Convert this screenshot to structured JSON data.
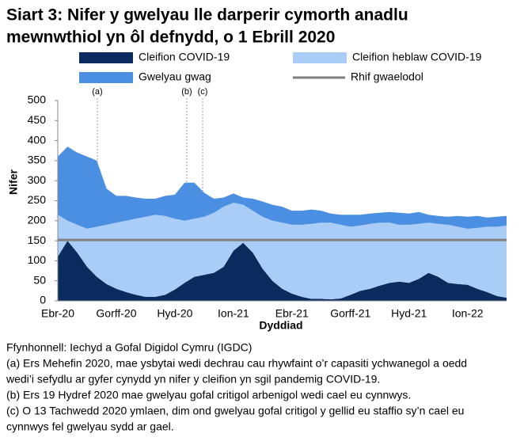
{
  "chart_data": {
    "type": "stacked-area",
    "title": [
      "Siart 3: Nifer y gwelyau lle darperir cymorth anadlu",
      "mewnwthiol yn ôl defnydd, o 1 Ebrill 2020"
    ],
    "x_label": "Dyddiad",
    "y_label": "Nifer",
    "categories": [
      "Ebr-20",
      null,
      null,
      null,
      null,
      null,
      "Gorff-20",
      null,
      null,
      null,
      null,
      null,
      "Hyd-20",
      null,
      null,
      null,
      null,
      null,
      "Ion-21",
      null,
      null,
      null,
      null,
      null,
      "Ebr-21",
      null,
      null,
      null,
      null,
      null,
      "Gorff-21",
      null,
      null,
      null,
      null,
      null,
      "Hyd-21",
      null,
      null,
      null,
      null,
      null,
      "Ion-22",
      null,
      null,
      null,
      null
    ],
    "series": [
      {
        "name": "Cleifion COVID-19",
        "color": "#0b2a5e",
        "values": [
          110,
          150,
          120,
          85,
          60,
          42,
          30,
          22,
          15,
          10,
          10,
          15,
          28,
          45,
          60,
          65,
          70,
          85,
          125,
          145,
          120,
          80,
          50,
          30,
          18,
          10,
          5,
          5,
          4,
          6,
          15,
          25,
          30,
          38,
          45,
          48,
          45,
          55,
          70,
          60,
          45,
          42,
          40,
          30,
          22,
          12,
          8
        ]
      },
      {
        "name": "Cleifion heblaw COVID-19",
        "color": "#a9cdf6",
        "values": [
          105,
          50,
          70,
          95,
          125,
          148,
          165,
          178,
          190,
          200,
          205,
          197,
          177,
          155,
          145,
          145,
          150,
          150,
          120,
          95,
          105,
          130,
          150,
          165,
          172,
          180,
          187,
          190,
          191,
          184,
          170,
          163,
          162,
          157,
          150,
          142,
          145,
          137,
          125,
          132,
          145,
          143,
          140,
          152,
          163,
          173,
          180
        ]
      },
      {
        "name": "Gwelyau gwag",
        "color": "#4b8fe2",
        "values": [
          145,
          185,
          180,
          180,
          165,
          90,
          67,
          62,
          53,
          45,
          40,
          50,
          60,
          95,
          90,
          60,
          35,
          23,
          23,
          18,
          30,
          38,
          40,
          40,
          35,
          35,
          36,
          30,
          23,
          25,
          30,
          27,
          26,
          25,
          27,
          30,
          28,
          30,
          20,
          20,
          20,
          27,
          30,
          30,
          23,
          25,
          24
        ]
      }
    ],
    "baseline": {
      "name": "Rhif gwaelodol",
      "value": 152,
      "color": "#7f7f7f"
    },
    "annotations": [
      "(a)",
      "(b)",
      "(c)"
    ],
    "ylim": [
      0,
      500
    ],
    "yticks": [
      0,
      50,
      100,
      150,
      200,
      250,
      300,
      350,
      400,
      450,
      500
    ],
    "grid": false
  },
  "footnotes": [
    "Ffynhonnell: Iechyd a Gofal Digidol Cymru (IGDC)",
    "(a) Ers Mehefin 2020, mae ysbytai wedi dechrau cau rhywfaint o’r capasiti ychwanegol a oedd",
    "wedi’i sefydlu ar gyfer cynydd yn nifer y cleifion yn sgil pandemig COVID-19.",
    "(b) Ers 19 Hydref 2020 mae gwelyau gofal critigol arbenigol wedi cael eu cynnwys.",
    "(c) O 13 Tachwedd 2020 ymlaen, dim ond gwelyau gofal critigol y gellid eu staffio sy’n cael eu",
    "cynnwys fel gwelyau sydd ar gael."
  ]
}
